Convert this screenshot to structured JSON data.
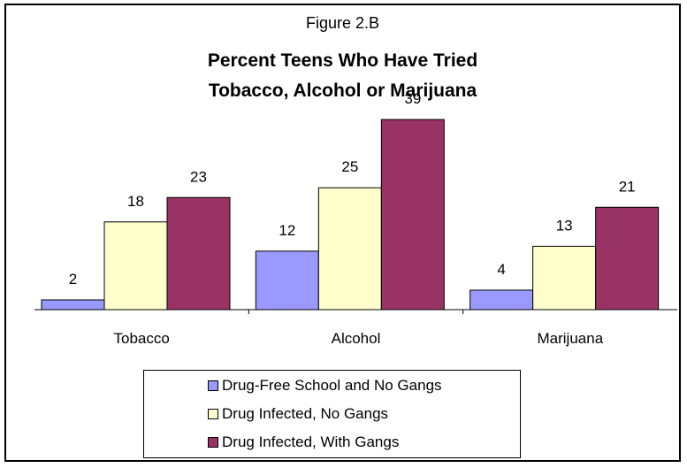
{
  "chart_data": {
    "type": "bar",
    "figure_label": "Figure 2.B",
    "title_lines": [
      "Percent Teens Who Have Tried",
      "Tobacco, Alcohol or Marijuana"
    ],
    "categories": [
      "Tobacco",
      "Alcohol",
      "Marijuana"
    ],
    "series": [
      {
        "name": "Drug-Free School and No Gangs",
        "color": "#9999ff",
        "values": [
          2,
          12,
          4
        ]
      },
      {
        "name": "Drug Infected, No Gangs",
        "color": "#ffffcc",
        "values": [
          18,
          25,
          13
        ]
      },
      {
        "name": "Drug Infected, With Gangs",
        "color": "#993366",
        "values": [
          23,
          39,
          21
        ]
      }
    ],
    "ylim": [
      0,
      40
    ],
    "grid": false,
    "legend_position": "bottom",
    "data_labels": true
  }
}
